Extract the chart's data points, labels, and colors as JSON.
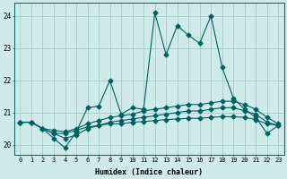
{
  "xlabel": "Humidex (Indice chaleur)",
  "background_color": "#ceeaea",
  "grid_color": "#aacece",
  "line_color": "#006060",
  "xlim": [
    -0.5,
    23.5
  ],
  "ylim": [
    19.7,
    24.4
  ],
  "yticks": [
    20,
    21,
    22,
    23,
    24
  ],
  "xticks": [
    0,
    1,
    2,
    3,
    4,
    5,
    6,
    7,
    8,
    9,
    10,
    11,
    12,
    13,
    14,
    15,
    16,
    17,
    18,
    19,
    20,
    21,
    22,
    23
  ],
  "hours": [
    0,
    1,
    2,
    3,
    4,
    5,
    6,
    7,
    8,
    9,
    10,
    11,
    12,
    13,
    14,
    15,
    16,
    17,
    18,
    19,
    20,
    21,
    22,
    23
  ],
  "line1": [
    20.7,
    20.7,
    20.5,
    20.2,
    19.9,
    20.4,
    21.15,
    21.2,
    22.0,
    20.95,
    21.15,
    21.1,
    24.1,
    22.8,
    23.7,
    23.4,
    23.15,
    24.0,
    22.4,
    21.45,
    21.1,
    20.85,
    20.35,
    20.6
  ],
  "line2": [
    20.7,
    20.7,
    20.5,
    20.45,
    20.4,
    20.5,
    20.65,
    20.75,
    20.85,
    20.9,
    20.95,
    21.05,
    21.1,
    21.15,
    21.2,
    21.25,
    21.25,
    21.3,
    21.35,
    21.35,
    21.25,
    21.1,
    20.85,
    20.65
  ],
  "line3": [
    20.7,
    20.7,
    20.5,
    20.35,
    20.2,
    20.3,
    20.5,
    20.6,
    20.7,
    20.75,
    20.8,
    20.85,
    20.9,
    20.95,
    21.0,
    21.05,
    21.05,
    21.1,
    21.15,
    21.15,
    21.05,
    20.95,
    20.7,
    20.6
  ],
  "line4": [
    20.7,
    20.7,
    20.5,
    20.35,
    20.35,
    20.45,
    20.55,
    20.6,
    20.65,
    20.65,
    20.7,
    20.72,
    20.75,
    20.78,
    20.8,
    20.82,
    20.82,
    20.85,
    20.87,
    20.87,
    20.85,
    20.78,
    20.65,
    20.6
  ]
}
